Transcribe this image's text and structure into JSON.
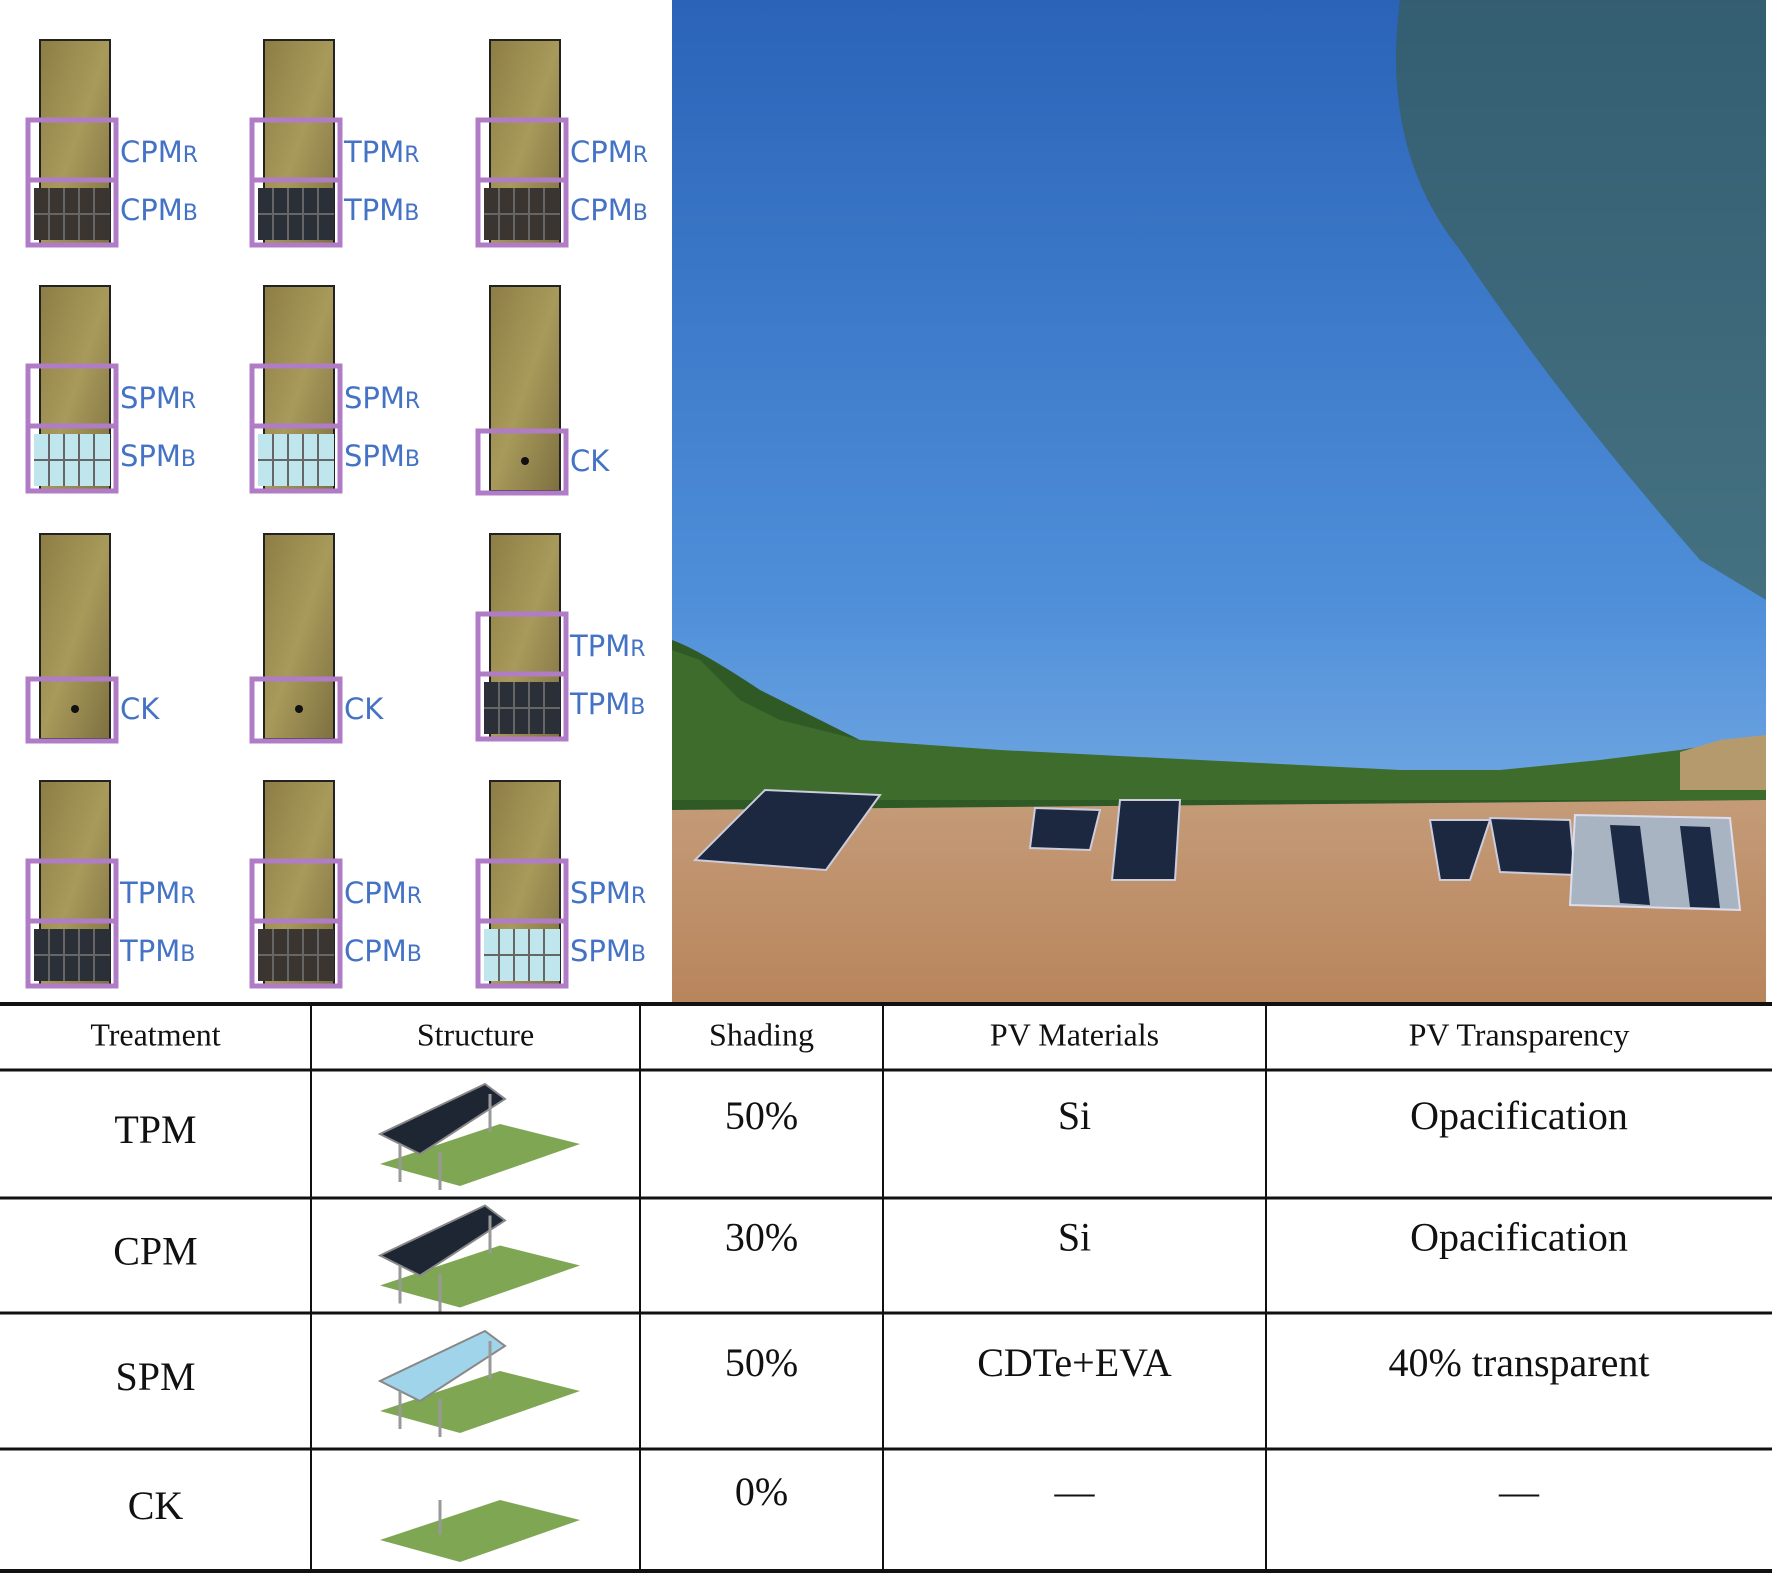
{
  "plots": [
    {
      "labels": [
        {
          "name": "CPM",
          "sub": "R"
        },
        {
          "name": "CPM",
          "sub": "B"
        }
      ]
    },
    {
      "labels": [
        {
          "name": "TPM",
          "sub": "R"
        },
        {
          "name": "TPM",
          "sub": "B"
        }
      ]
    },
    {
      "labels": [
        {
          "name": "CPM",
          "sub": "R"
        },
        {
          "name": "CPM",
          "sub": "B"
        }
      ]
    },
    {
      "labels": [
        {
          "name": "SPM",
          "sub": "R"
        },
        {
          "name": "SPM",
          "sub": "B"
        }
      ]
    },
    {
      "labels": [
        {
          "name": "SPM",
          "sub": "R"
        },
        {
          "name": "SPM",
          "sub": "B"
        }
      ]
    },
    {
      "labels": [
        {
          "name": "CK"
        }
      ]
    },
    {
      "labels": [
        {
          "name": "CK"
        }
      ]
    },
    {
      "labels": [
        {
          "name": "CK"
        }
      ]
    },
    {
      "labels": [
        {
          "name": "TPM",
          "sub": "R"
        },
        {
          "name": "TPM",
          "sub": "B"
        }
      ]
    },
    {
      "labels": [
        {
          "name": "TPM",
          "sub": "R"
        },
        {
          "name": "TPM",
          "sub": "B"
        }
      ]
    },
    {
      "labels": [
        {
          "name": "CPM",
          "sub": "R"
        },
        {
          "name": "CPM",
          "sub": "B"
        }
      ]
    },
    {
      "labels": [
        {
          "name": "SPM",
          "sub": "R"
        },
        {
          "name": "SPM",
          "sub": "B"
        }
      ]
    }
  ],
  "table": {
    "headers": [
      "Treatment",
      "Structure",
      "Shading",
      "PV  Materials",
      "PV  Transparency"
    ],
    "rows": [
      {
        "treatment": "TPM",
        "shading": "50%",
        "materials": "Si",
        "transparency": "Opacification"
      },
      {
        "treatment": "CPM",
        "shading": "30%",
        "materials": "Si",
        "transparency": "Opacification"
      },
      {
        "treatment": "SPM",
        "shading": "50%",
        "materials": "CDTe+EVA",
        "transparency": "40% transparent"
      },
      {
        "treatment": "CK",
        "shading": "0%",
        "materials": "—",
        "transparency": "—"
      }
    ]
  }
}
